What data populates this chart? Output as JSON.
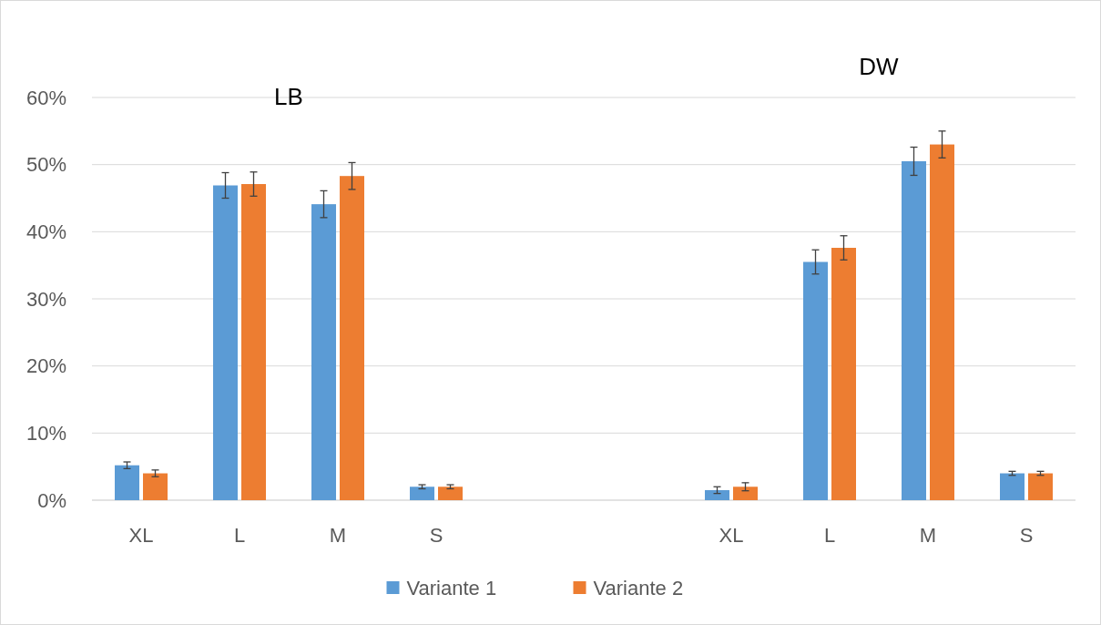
{
  "chart_data": {
    "type": "bar",
    "categories": [
      "XL",
      "L",
      "M",
      "S",
      null,
      null,
      "XL",
      "L",
      "M",
      "S"
    ],
    "series": [
      {
        "name": "Variante 1",
        "color": "#5b9bd5",
        "values": [
          5.2,
          46.9,
          44.1,
          2.0,
          null,
          null,
          1.5,
          35.5,
          50.5,
          4.0
        ],
        "errors": [
          0.5,
          1.9,
          2.0,
          0.3,
          null,
          null,
          0.5,
          1.8,
          2.1,
          0.3
        ]
      },
      {
        "name": "Variante 2",
        "color": "#ed7d31",
        "values": [
          4.0,
          47.1,
          48.3,
          2.0,
          null,
          null,
          2.0,
          37.6,
          53.0,
          4.0
        ],
        "errors": [
          0.5,
          1.8,
          2.0,
          0.3,
          null,
          null,
          0.6,
          1.8,
          2.0,
          0.3
        ]
      }
    ],
    "ylim": [
      0,
      60
    ],
    "yticks": [
      {
        "value": 0,
        "label": "0%"
      },
      {
        "value": 10,
        "label": "10%"
      },
      {
        "value": 20,
        "label": "20%"
      },
      {
        "value": 30,
        "label": "30%"
      },
      {
        "value": 40,
        "label": "40%"
      },
      {
        "value": 50,
        "label": "50%"
      },
      {
        "value": 60,
        "label": "60%"
      }
    ],
    "grid": "y",
    "legend": "bottom",
    "annotations": [
      "LB",
      "DW"
    ]
  }
}
